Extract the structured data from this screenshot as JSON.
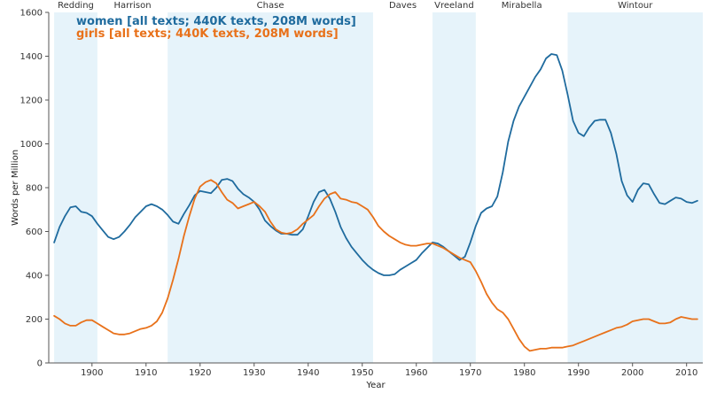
{
  "chart_data": {
    "type": "line",
    "title": "",
    "xlabel": "Year",
    "ylabel": "Words per Million",
    "xlim": [
      1892,
      2013
    ],
    "ylim": [
      0,
      1600
    ],
    "xticks": [
      1900,
      1910,
      1920,
      1930,
      1940,
      1950,
      1960,
      1970,
      1980,
      1990,
      2000,
      2010
    ],
    "yticks": [
      0,
      200,
      400,
      600,
      800,
      1000,
      1200,
      1400,
      1600
    ],
    "grid": false,
    "legend_position": "top-left",
    "bands": [
      {
        "label": "Redding",
        "start": 1893,
        "end": 1901,
        "shaded": true
      },
      {
        "label": "Harrison",
        "start": 1901,
        "end": 1914,
        "shaded": false
      },
      {
        "label": "Chase",
        "start": 1914,
        "end": 1952,
        "shaded": true
      },
      {
        "label": "Daves",
        "start": 1952,
        "end": 1963,
        "shaded": false
      },
      {
        "label": "Vreeland",
        "start": 1963,
        "end": 1971,
        "shaded": true
      },
      {
        "label": "Mirabella",
        "start": 1971,
        "end": 1988,
        "shaded": false
      },
      {
        "label": "Wintour",
        "start": 1988,
        "end": 2013,
        "shaded": true
      }
    ],
    "colors": {
      "women": "#1f6b9e",
      "girls": "#e8711a",
      "band": "#e6f3fa"
    },
    "x": [
      1893,
      1894,
      1895,
      1896,
      1897,
      1898,
      1899,
      1900,
      1901,
      1902,
      1903,
      1904,
      1905,
      1906,
      1907,
      1908,
      1909,
      1910,
      1911,
      1912,
      1913,
      1914,
      1915,
      1916,
      1917,
      1918,
      1919,
      1920,
      1921,
      1922,
      1923,
      1924,
      1925,
      1926,
      1927,
      1928,
      1929,
      1930,
      1931,
      1932,
      1933,
      1934,
      1935,
      1936,
      1937,
      1938,
      1939,
      1940,
      1941,
      1942,
      1943,
      1944,
      1945,
      1946,
      1947,
      1948,
      1949,
      1950,
      1951,
      1952,
      1953,
      1954,
      1955,
      1956,
      1957,
      1958,
      1959,
      1960,
      1961,
      1962,
      1963,
      1964,
      1965,
      1966,
      1967,
      1968,
      1969,
      1970,
      1971,
      1972,
      1973,
      1974,
      1975,
      1976,
      1977,
      1978,
      1979,
      1980,
      1981,
      1982,
      1983,
      1984,
      1985,
      1986,
      1987,
      1988,
      1989,
      1990,
      1991,
      1992,
      1993,
      1994,
      1995,
      1996,
      1997,
      1998,
      1999,
      2000,
      2001,
      2002,
      2003,
      2004,
      2005,
      2006,
      2007,
      2008,
      2009,
      2010,
      2011,
      2012
    ],
    "series": [
      {
        "name": "women [all texts; 440K texts, 208M words]",
        "values": [
          550,
          620,
          670,
          710,
          715,
          690,
          685,
          670,
          635,
          605,
          575,
          565,
          575,
          600,
          630,
          665,
          690,
          715,
          725,
          715,
          700,
          675,
          645,
          635,
          680,
          720,
          765,
          785,
          780,
          775,
          800,
          835,
          840,
          830,
          795,
          770,
          755,
          735,
          700,
          650,
          625,
          605,
          590,
          590,
          585,
          585,
          610,
          670,
          735,
          780,
          790,
          750,
          690,
          620,
          570,
          530,
          500,
          470,
          445,
          425,
          410,
          400,
          400,
          405,
          425,
          440,
          455,
          470,
          500,
          525,
          550,
          545,
          530,
          510,
          490,
          470,
          485,
          550,
          625,
          685,
          705,
          715,
          760,
          870,
          1010,
          1105,
          1170,
          1215,
          1260,
          1305,
          1340,
          1390,
          1410,
          1405,
          1335,
          1225,
          1105,
          1050,
          1035,
          1075,
          1105,
          1110,
          1110,
          1050,
          955,
          830,
          765,
          735,
          790,
          820,
          815,
          770,
          730,
          725,
          740,
          755,
          750,
          735,
          730,
          740
        ]
      },
      {
        "name": "girls [all texts; 440K texts, 208M words]",
        "values": [
          215,
          200,
          180,
          170,
          170,
          185,
          195,
          195,
          180,
          165,
          150,
          135,
          130,
          130,
          135,
          145,
          155,
          160,
          170,
          190,
          230,
          295,
          380,
          475,
          580,
          670,
          750,
          805,
          825,
          835,
          820,
          780,
          745,
          730,
          705,
          715,
          725,
          735,
          715,
          690,
          645,
          610,
          595,
          590,
          595,
          610,
          635,
          655,
          675,
          715,
          750,
          770,
          780,
          750,
          745,
          735,
          730,
          715,
          700,
          665,
          625,
          600,
          580,
          565,
          550,
          540,
          535,
          535,
          540,
          545,
          545,
          535,
          525,
          510,
          495,
          480,
          470,
          460,
          420,
          370,
          315,
          275,
          245,
          230,
          200,
          155,
          110,
          75,
          55,
          60,
          65,
          65,
          70,
          70,
          70,
          75,
          80,
          90,
          100,
          110,
          120,
          130,
          140,
          150,
          160,
          165,
          175,
          190,
          195,
          200,
          200,
          190,
          180,
          180,
          185,
          200,
          210,
          205,
          200,
          200
        ]
      }
    ]
  }
}
